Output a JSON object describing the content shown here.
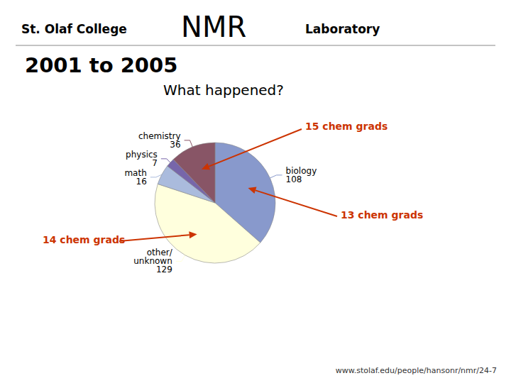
{
  "chart_data": {
    "type": "pie",
    "title": "2001 to 2005",
    "subtitle": "What happened?",
    "header": [
      "St. Olaf College",
      "NMR",
      "Laboratory"
    ],
    "categories": [
      "biology",
      "other/\nunknown",
      "math",
      "physics",
      "chemistry"
    ],
    "values": [
      108,
      129,
      16,
      7,
      36
    ],
    "colors": [
      "#8899cc",
      "#ffffdd",
      "#aabbdd",
      "#7766aa",
      "#885566"
    ],
    "data_labels": true,
    "annotations": [
      {
        "text": "13 chem grads",
        "color": "#cc3300"
      },
      {
        "text": "14 chem grads",
        "color": "#cc3300"
      },
      {
        "text": "15 chem grads",
        "color": "#cc3300"
      }
    ],
    "footer": "www.stolaf.edu/people/hansonr/nmr/24-7"
  }
}
